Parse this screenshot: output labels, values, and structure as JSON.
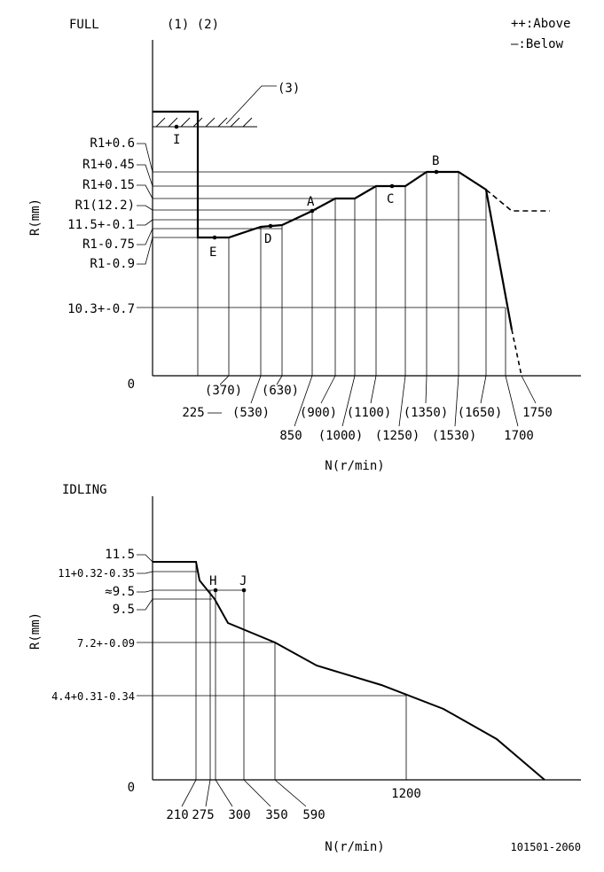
{
  "header": {
    "full_label": "FULL",
    "idling_label": "IDLING",
    "notes_label": "(1) (2)",
    "note3_label": "(3)",
    "legend_above": "++:Above",
    "legend_below": "—:Below",
    "doc_number": "101501-2060"
  },
  "chart_data": [
    {
      "type": "line",
      "title": "FULL",
      "xlabel": "N(r/min)",
      "ylabel": "R(mm)",
      "origin_label": "0",
      "y_labels": [
        "R1+0.6",
        "R1+0.45",
        "R1+0.15",
        "R1(12.2)",
        "11.5+-0.1",
        "R1-0.75",
        "R1-0.9",
        "10.3+-0.7"
      ],
      "x_labels": [
        "225",
        "(370)",
        "(530)",
        "(630)",
        "850",
        "(900)",
        "(1000)",
        "(1100)",
        "(1250)",
        "(1350)",
        "(1530)",
        "(1650)",
        "1700",
        "1750"
      ],
      "point_labels": [
        "I",
        "E",
        "D",
        "A",
        "C",
        "B"
      ],
      "series": [
        {
          "x": [
            0,
            225,
            225,
            370,
            530,
            630,
            850,
            900,
            1000,
            1100,
            1250,
            1350,
            1530,
            1650,
            1700
          ],
          "y": [
            12.8,
            12.8,
            11.35,
            11.35,
            11.4,
            11.4,
            11.65,
            11.65,
            11.8,
            11.8,
            11.95,
            11.95,
            12.05,
            12.05,
            10.3
          ]
        }
      ]
    },
    {
      "type": "line",
      "title": "IDLING",
      "xlabel": "N(r/min)",
      "ylabel": "R(mm)",
      "origin_label": "0",
      "y_labels": [
        "11.5",
        "11+0.32-0.35",
        "≈9.5",
        "9.5",
        "7.2+-0.09",
        "4.4+0.31-0.34"
      ],
      "x_labels": [
        "210",
        "275",
        "300",
        "350",
        "590",
        "1200"
      ],
      "point_labels": [
        "H",
        "J"
      ],
      "series": [
        {
          "x": [
            0,
            210,
            275,
            300,
            350,
            590,
            1200
          ],
          "y": [
            11.5,
            11.5,
            9.5,
            9.0,
            7.2,
            6.0,
            4.4
          ]
        }
      ]
    }
  ]
}
